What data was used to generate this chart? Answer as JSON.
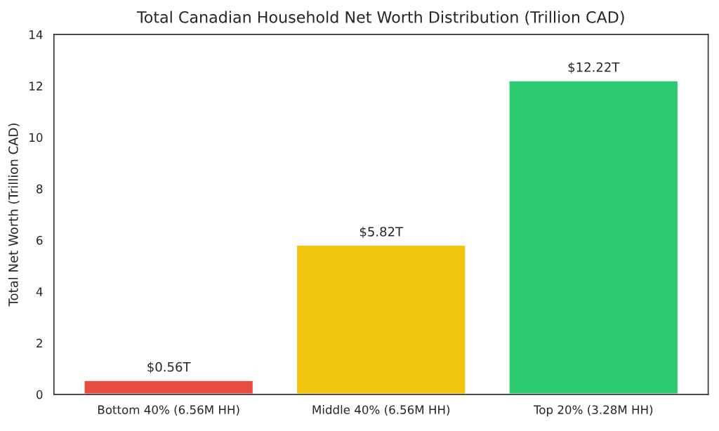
{
  "chart_data": {
    "type": "bar",
    "title": "Total Canadian Household Net Worth Distribution (Trillion CAD)",
    "ylabel": "Total Net Worth (Trillion CAD)",
    "categories": [
      "Bottom 40% (6.56M HH)",
      "Middle 40% (6.56M HH)",
      "Top 20% (3.28M HH)"
    ],
    "values": [
      0.56,
      5.82,
      12.22
    ],
    "colors": [
      "#e74c3c",
      "#f1c40f",
      "#2ecc71"
    ],
    "value_labels": [
      "$0.56T",
      "$5.82T",
      "$12.22T"
    ],
    "ylim": [
      0,
      14
    ],
    "yticks": [
      0,
      2,
      4,
      6,
      8,
      10,
      12,
      14
    ],
    "grid": false
  }
}
